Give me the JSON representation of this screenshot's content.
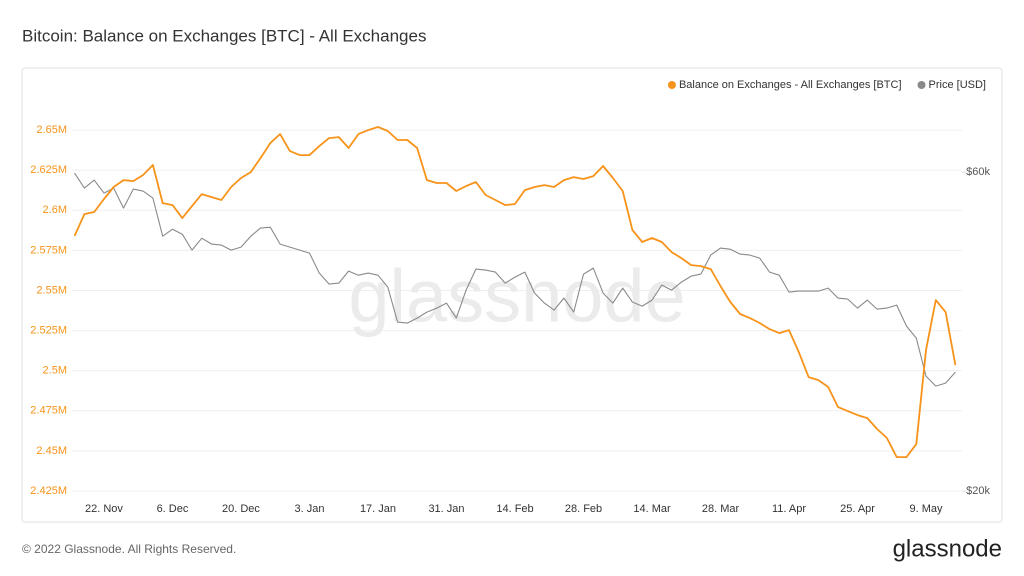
{
  "chart_data": {
    "type": "line",
    "title": "Bitcoin: Balance on Exchanges [BTC] - All Exchanges",
    "watermark": "glassnode",
    "footer": "© 2022 Glassnode. All Rights Reserved.",
    "logo": "glassnode",
    "legend": "top-right",
    "grid": true,
    "categories": [
      null,
      null,
      null,
      "22. Nov",
      null,
      null,
      null,
      null,
      null,
      null,
      "6. Dec",
      null,
      null,
      null,
      null,
      null,
      null,
      "20. Dec",
      null,
      null,
      null,
      null,
      null,
      null,
      "3. Jan",
      null,
      null,
      null,
      null,
      null,
      null,
      "17. Jan",
      null,
      null,
      null,
      null,
      null,
      null,
      "31. Jan",
      null,
      null,
      null,
      null,
      null,
      null,
      "14. Feb",
      null,
      null,
      null,
      null,
      null,
      null,
      "28. Feb",
      null,
      null,
      null,
      null,
      null,
      null,
      "14. Mar",
      null,
      null,
      null,
      null,
      null,
      null,
      "28. Mar",
      null,
      null,
      null,
      null,
      null,
      null,
      "11. Apr",
      null,
      null,
      null,
      null,
      null,
      null,
      "25. Apr",
      null,
      null,
      null,
      null,
      null,
      null,
      "9. May",
      null,
      null,
      null
    ],
    "ylim": [
      2415000,
      2670000
    ],
    "yticks": [
      {
        "value": 2425000,
        "label": "2.425M"
      },
      {
        "value": 2450000,
        "label": "2.45M"
      },
      {
        "value": 2475000,
        "label": "2.475M"
      },
      {
        "value": 2500000,
        "label": "2.5M"
      },
      {
        "value": 2525000,
        "label": "2.525M"
      },
      {
        "value": 2550000,
        "label": "2.55M"
      },
      {
        "value": 2575000,
        "label": "2.575M"
      },
      {
        "value": 2600000,
        "label": "2.6M"
      },
      {
        "value": 2625000,
        "label": "2.625M"
      },
      {
        "value": 2650000,
        "label": "2.65M"
      }
    ],
    "y2lim": [
      18000,
      69300
    ],
    "y2ticks": [
      {
        "value": 20000,
        "label": "$20k"
      },
      {
        "value": 60000,
        "label": "$60k"
      }
    ],
    "series": [
      {
        "name": "Balance on Exchanges - All Exchanges [BTC]",
        "color": "#f7931a",
        "values": [
          2584000,
          2597600,
          2598900,
          2607000,
          2614500,
          2618800,
          2618200,
          2622000,
          2628200,
          2604500,
          2603200,
          2595100,
          2602600,
          2610100,
          2608200,
          2606400,
          2614500,
          2620100,
          2623800,
          2632500,
          2641900,
          2647500,
          2636900,
          2634400,
          2634400,
          2640000,
          2645000,
          2645600,
          2638800,
          2647500,
          2650000,
          2651900,
          2649400,
          2643800,
          2643800,
          2638800,
          2618800,
          2617000,
          2617000,
          2612000,
          2615100,
          2617600,
          2609500,
          2606400,
          2603200,
          2603900,
          2612600,
          2614500,
          2615700,
          2614500,
          2618800,
          2620700,
          2619500,
          2621300,
          2627600,
          2620100,
          2612000,
          2587700,
          2580200,
          2582700,
          2580200,
          2573900,
          2570200,
          2565800,
          2565200,
          2563300,
          2552700,
          2542800,
          2535300,
          2532800,
          2529700,
          2525900,
          2523400,
          2525300,
          2511600,
          2496000,
          2494100,
          2489800,
          2477300,
          2474800,
          2472300,
          2470400,
          2463600,
          2458000,
          2446100,
          2446100,
          2454200,
          2512800,
          2544000,
          2536500,
          2503500
        ]
      },
      {
        "name": "Price [USD]",
        "color": "#8a8a8a",
        "axis": "y2",
        "values": [
          59870,
          58000,
          59000,
          57370,
          58000,
          55490,
          57870,
          57620,
          56740,
          51970,
          52850,
          52220,
          50220,
          51720,
          50970,
          50850,
          50220,
          50600,
          51970,
          52980,
          53100,
          50970,
          50600,
          50220,
          49840,
          47340,
          45960,
          46080,
          47590,
          47080,
          47340,
          47080,
          45580,
          41190,
          41070,
          41690,
          42450,
          42950,
          43570,
          41690,
          45200,
          47840,
          47710,
          47460,
          46080,
          46830,
          47460,
          44830,
          43570,
          42700,
          44200,
          42450,
          47210,
          47960,
          44830,
          43570,
          45450,
          43700,
          43200,
          43950,
          45830,
          45200,
          46210,
          46960,
          47210,
          49590,
          50470,
          50340,
          49720,
          49590,
          49220,
          47460,
          47080,
          44950,
          45080,
          45080,
          45080,
          45450,
          44200,
          44080,
          42950,
          43950,
          42820,
          42950,
          43320,
          40690,
          39180,
          34420,
          33170,
          33540,
          34920
        ]
      }
    ]
  }
}
